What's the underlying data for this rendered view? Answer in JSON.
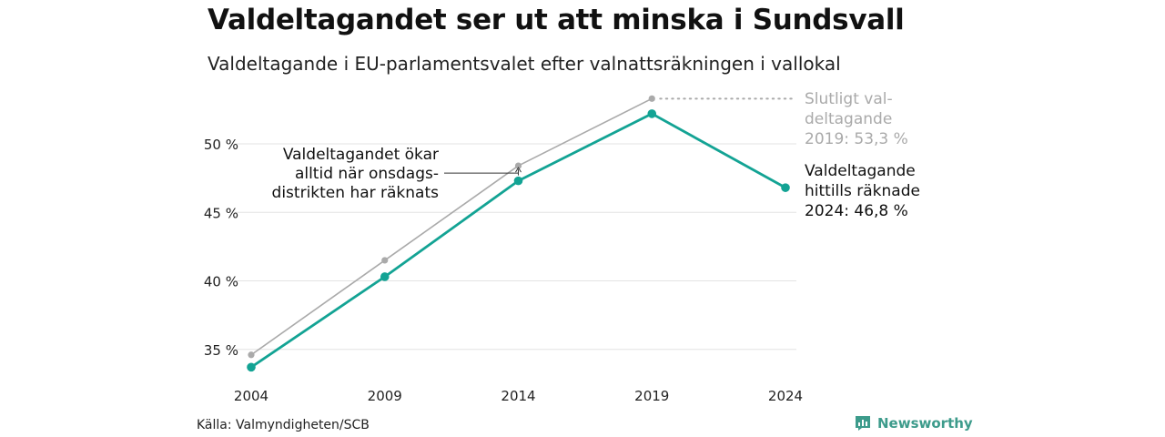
{
  "title": "Valdeltagandet ser ut att minska i Sundsvall",
  "subtitle": "Valdeltagande i EU-parlamentsvalet efter valnattsräkningen i vallokal",
  "source": "Källa: Valmyndigheten/SCB",
  "brand": "Newsworthy",
  "colors": {
    "main": "#13a394",
    "final": "#aaaaaa",
    "grid": "#e3e3e3",
    "brand": "#3d9b8b"
  },
  "icons": {
    "brand": "newsworthy-logo-icon"
  },
  "chart_data": {
    "type": "line",
    "x": [
      "2004",
      "2009",
      "2014",
      "2019",
      "2024"
    ],
    "ylim": [
      33,
      54
    ],
    "yticks": [
      35,
      40,
      45,
      50
    ],
    "ytick_labels": [
      "35 %",
      "40 %",
      "45 %",
      "50 %"
    ],
    "grid": true,
    "series": [
      {
        "key": "final",
        "values": [
          34.6,
          41.5,
          48.4,
          53.3,
          null
        ]
      },
      {
        "key": "vallokal",
        "values": [
          33.7,
          40.3,
          47.3,
          52.2,
          46.8
        ]
      }
    ],
    "annotations": {
      "final": [
        "Slutligt val-",
        "deltagande",
        "2019: 53,3 %"
      ],
      "current": [
        "Valdeltagande",
        "hittills räknade",
        "2024: 46,8 %"
      ],
      "note": [
        "Valdeltagandet ökar",
        "alltid när onsdags-",
        "distrikten har räknats"
      ]
    }
  }
}
